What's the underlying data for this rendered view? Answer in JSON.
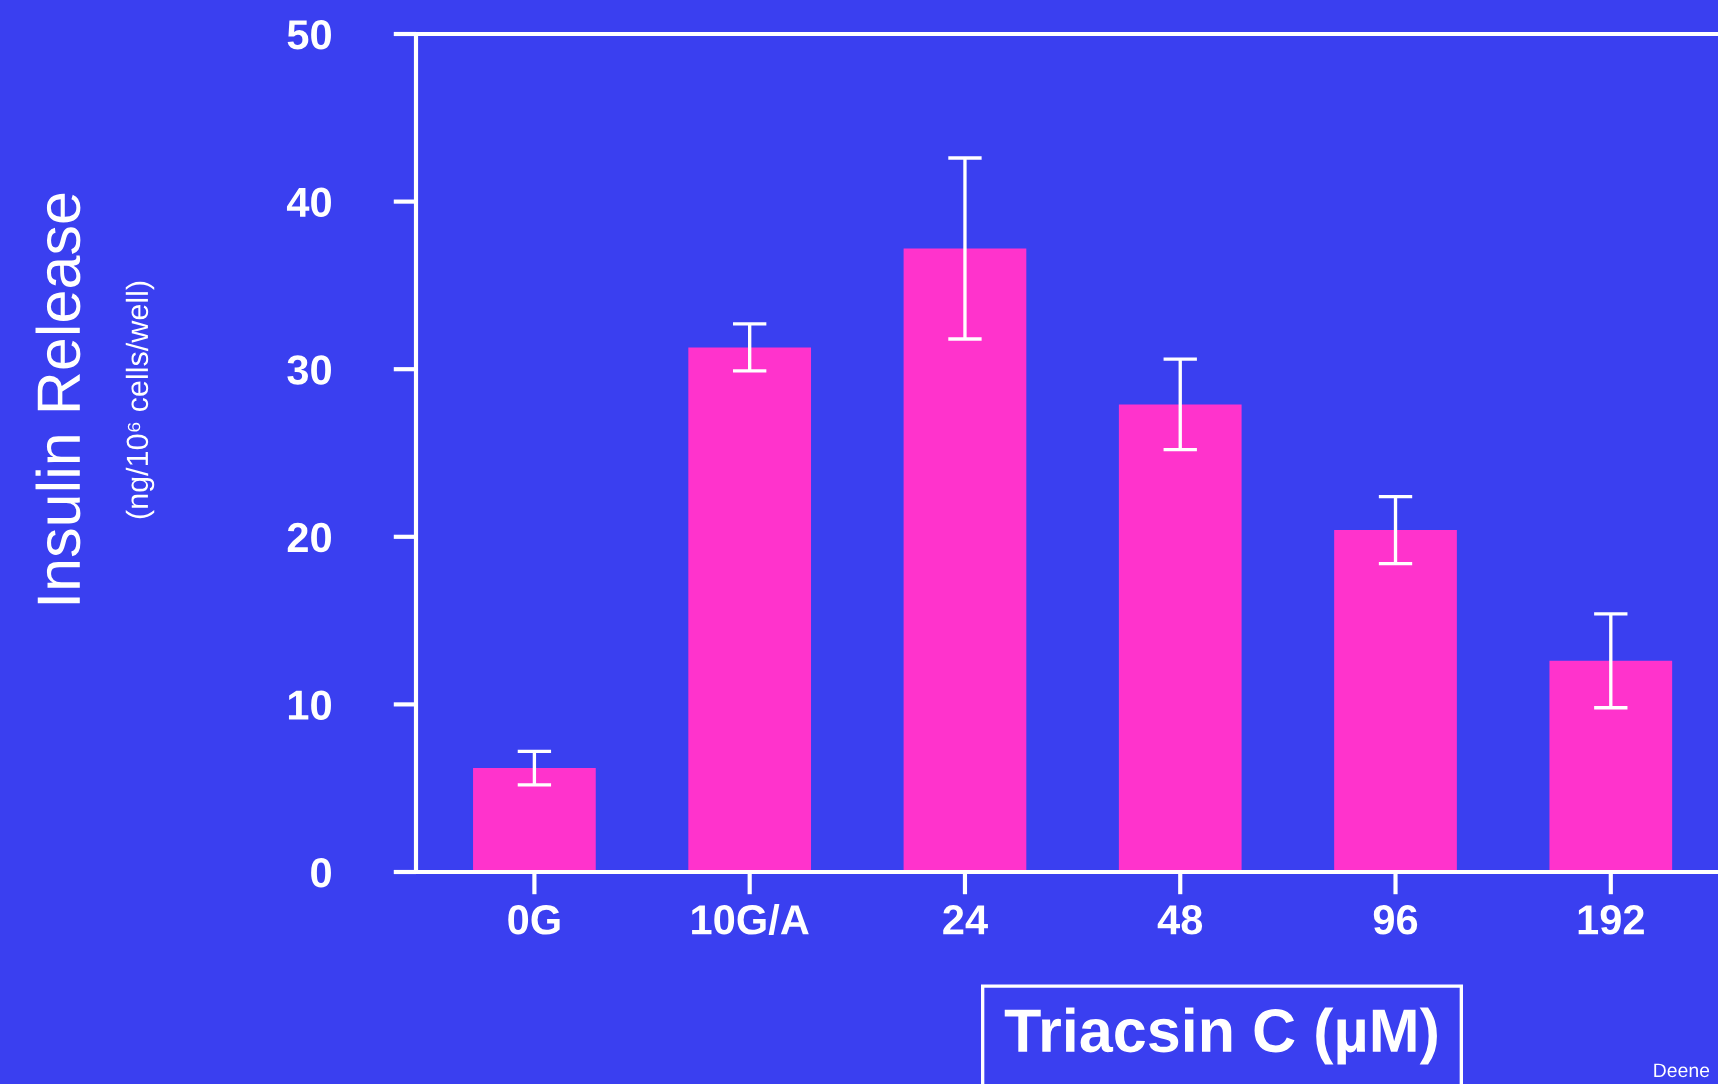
{
  "chart_data": {
    "type": "bar",
    "categories": [
      "0G",
      "10G/A",
      "24",
      "48",
      "96",
      "192"
    ],
    "values": [
      6.2,
      31.3,
      37.2,
      27.9,
      20.4,
      12.6
    ],
    "errors": [
      1.0,
      1.4,
      5.4,
      2.7,
      2.0,
      2.8
    ],
    "color": "#ff33cc",
    "ylabel": "Insulin Release",
    "subtitle": "(ng/10⁶ cells/well)",
    "xlabel": "Triacsin C (µM)",
    "annotations": [
      "Deene"
    ],
    "ylim": [
      0,
      50
    ],
    "yticks": [
      0,
      10,
      20,
      30,
      40,
      50
    ],
    "grid": false,
    "legend": false
  }
}
